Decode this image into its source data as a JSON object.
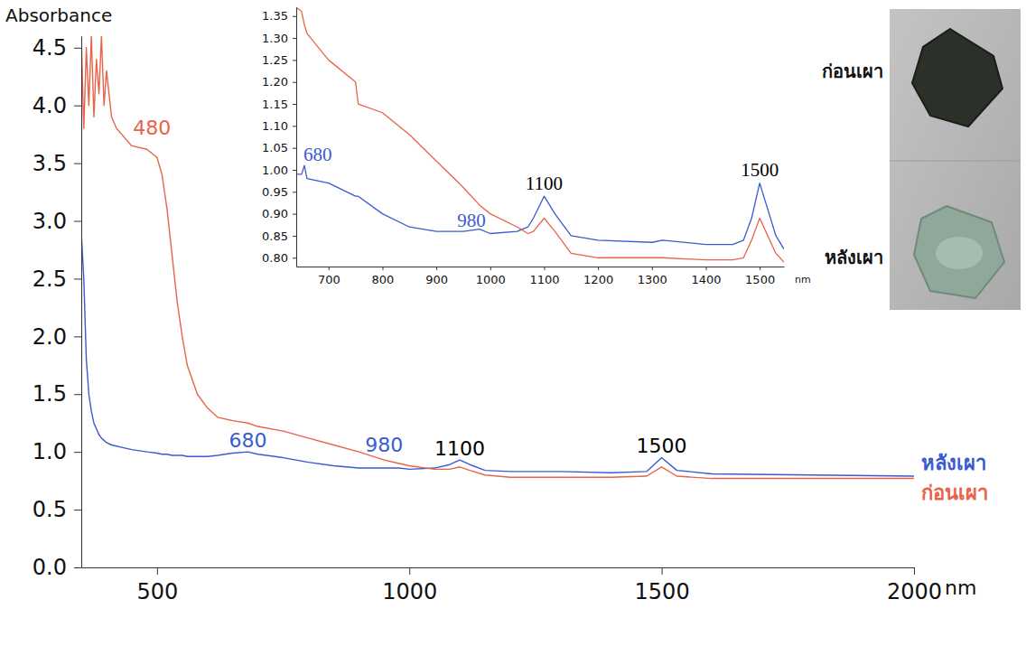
{
  "chart_data": [
    {
      "type": "line",
      "y_label": "Absorbance",
      "x_label": "nm",
      "xlim": [
        350,
        2000
      ],
      "xticks": [
        500,
        1000,
        1500,
        2000
      ],
      "ylim": [
        0,
        4.6
      ],
      "yticks": [
        {
          "value": 0,
          "label": "0.0"
        },
        {
          "value": 0.5,
          "label": "0.5"
        },
        {
          "value": 1,
          "label": "1.0"
        },
        {
          "value": 1.5,
          "label": "1.5"
        },
        {
          "value": 2,
          "label": "2.0"
        },
        {
          "value": 2.5,
          "label": "2.5"
        },
        {
          "value": 3,
          "label": "3.0"
        },
        {
          "value": 3.5,
          "label": "3.5"
        },
        {
          "value": 4,
          "label": "4.0"
        },
        {
          "value": 4.5,
          "label": "4.5"
        }
      ],
      "grid": false,
      "legend": "right",
      "x": [
        350,
        355,
        360,
        365,
        370,
        375,
        380,
        385,
        390,
        395,
        400,
        410,
        420,
        430,
        450,
        480,
        500,
        510,
        520,
        530,
        540,
        550,
        560,
        580,
        600,
        620,
        650,
        680,
        700,
        750,
        800,
        850,
        900,
        950,
        980,
        1000,
        1050,
        1080,
        1100,
        1120,
        1150,
        1200,
        1300,
        1400,
        1470,
        1500,
        1530,
        1600,
        1800,
        2000
      ],
      "series": [
        {
          "name": "หลังเผา",
          "color": "#3a5bd0",
          "values": [
            2.9,
            2.5,
            1.8,
            1.5,
            1.35,
            1.25,
            1.2,
            1.15,
            1.12,
            1.1,
            1.08,
            1.06,
            1.05,
            1.04,
            1.02,
            1.0,
            0.99,
            0.98,
            0.98,
            0.97,
            0.97,
            0.97,
            0.96,
            0.96,
            0.96,
            0.97,
            0.99,
            1.0,
            0.98,
            0.95,
            0.91,
            0.88,
            0.86,
            0.86,
            0.86,
            0.85,
            0.86,
            0.89,
            0.93,
            0.89,
            0.84,
            0.83,
            0.83,
            0.82,
            0.83,
            0.95,
            0.84,
            0.81,
            0.8,
            0.79
          ]
        },
        {
          "name": "ก่อนเผา",
          "color": "#e8634a",
          "values": [
            4.6,
            3.8,
            4.5,
            4.0,
            4.6,
            3.9,
            4.4,
            4.1,
            4.6,
            4.0,
            4.3,
            3.9,
            3.8,
            3.75,
            3.65,
            3.62,
            3.55,
            3.4,
            3.1,
            2.7,
            2.3,
            2.0,
            1.75,
            1.5,
            1.38,
            1.3,
            1.27,
            1.25,
            1.22,
            1.18,
            1.12,
            1.06,
            1.0,
            0.93,
            0.9,
            0.88,
            0.85,
            0.85,
            0.87,
            0.84,
            0.8,
            0.78,
            0.78,
            0.78,
            0.79,
            0.87,
            0.79,
            0.77,
            0.77,
            0.77
          ]
        }
      ],
      "annotations": [
        {
          "text": "480",
          "x": 490,
          "y": 3.75,
          "color": "#e8634a"
        },
        {
          "text": "680",
          "x": 680,
          "y": 1.04,
          "color": "#3a5bd0"
        },
        {
          "text": "980",
          "x": 950,
          "y": 1.0,
          "color": "#3a5bd0"
        },
        {
          "text": "1100",
          "x": 1100,
          "y": 0.97,
          "color": "#000000"
        },
        {
          "text": "1500",
          "x": 1500,
          "y": 0.99,
          "color": "#000000"
        }
      ]
    },
    {
      "type": "line",
      "x_label": "nm",
      "xlim": [
        640,
        1545
      ],
      "xticks": [
        700,
        800,
        900,
        1000,
        1100,
        1200,
        1300,
        1400,
        1500
      ],
      "ylim": [
        0.78,
        1.37
      ],
      "yticks": [
        {
          "value": 0.8,
          "label": "0.80"
        },
        {
          "value": 0.85,
          "label": "0.85"
        },
        {
          "value": 0.9,
          "label": "0.90"
        },
        {
          "value": 0.95,
          "label": "0.95"
        },
        {
          "value": 1,
          "label": "1.00"
        },
        {
          "value": 1.05,
          "label": "1.05"
        },
        {
          "value": 1.1,
          "label": "1.10"
        },
        {
          "value": 1.15,
          "label": "1.15"
        },
        {
          "value": 1.2,
          "label": "1.20"
        },
        {
          "value": 1.25,
          "label": "1.25"
        },
        {
          "value": 1.3,
          "label": "1.30"
        },
        {
          "value": 1.35,
          "label": "1.35"
        }
      ],
      "grid": false,
      "x": [
        640,
        650,
        655,
        660,
        700,
        750,
        755,
        800,
        850,
        900,
        950,
        980,
        1000,
        1050,
        1070,
        1080,
        1100,
        1120,
        1150,
        1200,
        1300,
        1320,
        1400,
        1450,
        1470,
        1485,
        1500,
        1515,
        1530,
        1545
      ],
      "series": [
        {
          "color": "#3a5bd0",
          "values": [
            0.99,
            0.99,
            1.01,
            0.98,
            0.97,
            0.94,
            0.94,
            0.9,
            0.87,
            0.86,
            0.86,
            0.865,
            0.855,
            0.86,
            0.87,
            0.89,
            0.94,
            0.9,
            0.85,
            0.84,
            0.835,
            0.84,
            0.83,
            0.83,
            0.84,
            0.89,
            0.97,
            0.91,
            0.85,
            0.82
          ]
        },
        {
          "color": "#e8634a",
          "values": [
            1.37,
            1.36,
            1.33,
            1.31,
            1.25,
            1.2,
            1.15,
            1.13,
            1.08,
            1.02,
            0.96,
            0.92,
            0.9,
            0.87,
            0.855,
            0.86,
            0.89,
            0.86,
            0.81,
            0.8,
            0.8,
            0.8,
            0.795,
            0.795,
            0.8,
            0.84,
            0.89,
            0.85,
            0.81,
            0.79
          ]
        }
      ],
      "annotations": [
        {
          "text": "680",
          "x": 680,
          "y": 1.02,
          "color": "#3a5bd0"
        },
        {
          "text": "980",
          "x": 965,
          "y": 0.87,
          "color": "#3a5bd0"
        },
        {
          "text": "1100",
          "x": 1100,
          "y": 0.955,
          "color": "#000000"
        },
        {
          "text": "1500",
          "x": 1500,
          "y": 0.985,
          "color": "#000000"
        }
      ]
    }
  ],
  "photo_panel": {
    "labels": [
      "ก่อนเผา",
      "หลังเผา"
    ]
  }
}
